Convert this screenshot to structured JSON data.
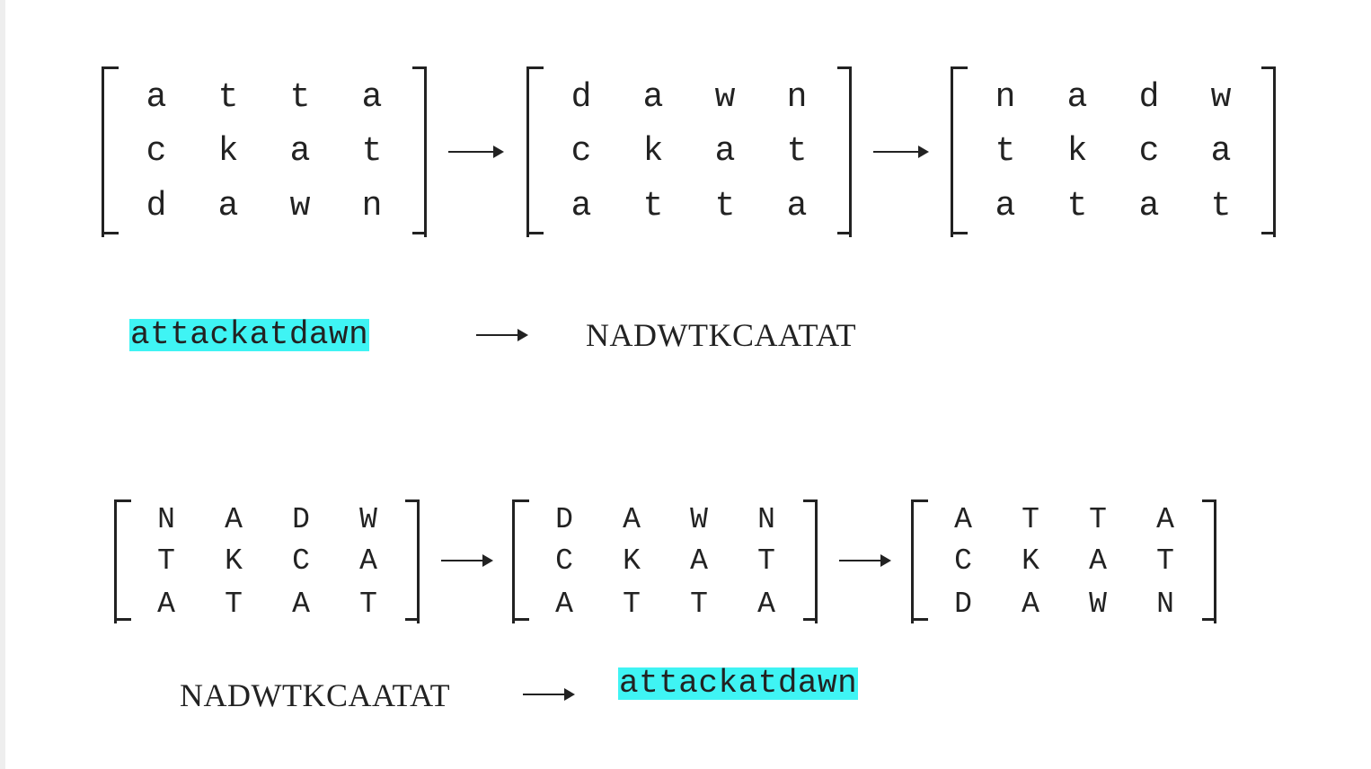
{
  "encrypt": {
    "matrices": [
      [
        [
          "a",
          "t",
          "t",
          "a"
        ],
        [
          "c",
          "k",
          "a",
          "t"
        ],
        [
          "d",
          "a",
          "w",
          "n"
        ]
      ],
      [
        [
          "d",
          "a",
          "w",
          "n"
        ],
        [
          "c",
          "k",
          "a",
          "t"
        ],
        [
          "a",
          "t",
          "t",
          "a"
        ]
      ],
      [
        [
          "n",
          "a",
          "d",
          "w"
        ],
        [
          "t",
          "k",
          "c",
          "a"
        ],
        [
          "a",
          "t",
          "a",
          "t"
        ]
      ]
    ],
    "plaintext": "attackatdawn",
    "ciphertext": "NADWTKCAATAT"
  },
  "decrypt": {
    "matrices": [
      [
        [
          "N",
          "A",
          "D",
          "W"
        ],
        [
          "T",
          "K",
          "C",
          "A"
        ],
        [
          "A",
          "T",
          "A",
          "T"
        ]
      ],
      [
        [
          "D",
          "A",
          "W",
          "N"
        ],
        [
          "C",
          "K",
          "A",
          "T"
        ],
        [
          "A",
          "T",
          "T",
          "A"
        ]
      ],
      [
        [
          "A",
          "T",
          "T",
          "A"
        ],
        [
          "C",
          "K",
          "A",
          "T"
        ],
        [
          "D",
          "A",
          "W",
          "N"
        ]
      ]
    ],
    "ciphertext": "NADWTKCAATAT",
    "plaintext": "attackatdawn"
  },
  "colors": {
    "highlight": "#3ff4f4",
    "ink": "#222222"
  }
}
